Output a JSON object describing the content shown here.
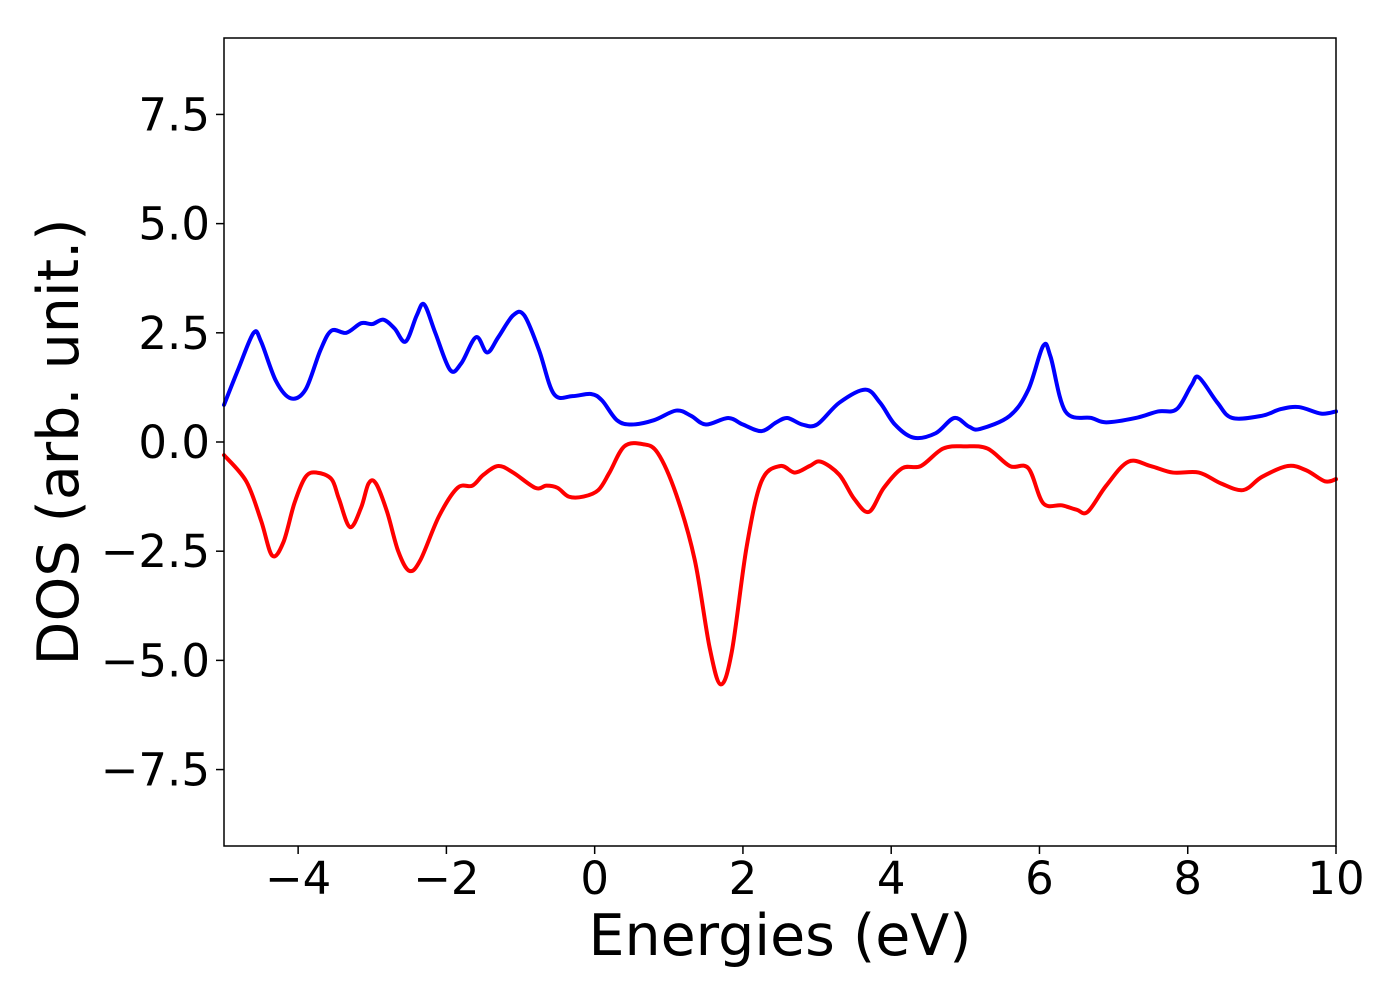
{
  "chart_data": {
    "type": "line",
    "title": "",
    "xlabel": "Energies (eV)",
    "ylabel": "DOS (arb. unit.)",
    "xlim": [
      -5,
      10
    ],
    "ylim": [
      -9.25,
      9.25
    ],
    "grid": false,
    "legend": "none",
    "x_ticks": [
      -4,
      -2,
      0,
      2,
      4,
      6,
      8,
      10
    ],
    "x_tick_labels": [
      "−4",
      "−2",
      "0",
      "2",
      "4",
      "6",
      "8",
      "10"
    ],
    "y_ticks": [
      -7.5,
      -5.0,
      -2.5,
      0.0,
      2.5,
      5.0,
      7.5
    ],
    "y_tick_labels": [
      "−7.5",
      "−5.0",
      "−2.5",
      "0.0",
      "2.5",
      "5.0",
      "7.5"
    ],
    "series": [
      {
        "color": "#0000ff",
        "points": [
          [
            -5.0,
            0.85
          ],
          [
            -4.8,
            1.7
          ],
          [
            -4.6,
            2.5
          ],
          [
            -4.5,
            2.3
          ],
          [
            -4.3,
            1.4
          ],
          [
            -4.1,
            1.0
          ],
          [
            -3.9,
            1.2
          ],
          [
            -3.7,
            2.1
          ],
          [
            -3.55,
            2.55
          ],
          [
            -3.35,
            2.5
          ],
          [
            -3.15,
            2.72
          ],
          [
            -3.0,
            2.7
          ],
          [
            -2.85,
            2.8
          ],
          [
            -2.7,
            2.6
          ],
          [
            -2.55,
            2.3
          ],
          [
            -2.4,
            2.9
          ],
          [
            -2.3,
            3.15
          ],
          [
            -2.15,
            2.5
          ],
          [
            -1.95,
            1.65
          ],
          [
            -1.8,
            1.8
          ],
          [
            -1.6,
            2.4
          ],
          [
            -1.45,
            2.05
          ],
          [
            -1.3,
            2.4
          ],
          [
            -1.1,
            2.9
          ],
          [
            -0.95,
            2.9
          ],
          [
            -0.75,
            2.1
          ],
          [
            -0.55,
            1.1
          ],
          [
            -0.3,
            1.05
          ],
          [
            -0.05,
            1.1
          ],
          [
            0.1,
            0.95
          ],
          [
            0.3,
            0.5
          ],
          [
            0.5,
            0.4
          ],
          [
            0.8,
            0.5
          ],
          [
            1.1,
            0.72
          ],
          [
            1.3,
            0.6
          ],
          [
            1.5,
            0.4
          ],
          [
            1.8,
            0.55
          ],
          [
            2.0,
            0.4
          ],
          [
            2.25,
            0.25
          ],
          [
            2.45,
            0.45
          ],
          [
            2.6,
            0.55
          ],
          [
            2.8,
            0.4
          ],
          [
            3.0,
            0.4
          ],
          [
            3.3,
            0.9
          ],
          [
            3.65,
            1.2
          ],
          [
            3.85,
            0.9
          ],
          [
            4.05,
            0.4
          ],
          [
            4.3,
            0.1
          ],
          [
            4.6,
            0.2
          ],
          [
            4.85,
            0.55
          ],
          [
            5.05,
            0.35
          ],
          [
            5.2,
            0.3
          ],
          [
            5.6,
            0.6
          ],
          [
            5.85,
            1.2
          ],
          [
            6.05,
            2.2
          ],
          [
            6.15,
            1.95
          ],
          [
            6.35,
            0.7
          ],
          [
            6.7,
            0.55
          ],
          [
            6.9,
            0.45
          ],
          [
            7.3,
            0.55
          ],
          [
            7.6,
            0.7
          ],
          [
            7.85,
            0.75
          ],
          [
            8.05,
            1.3
          ],
          [
            8.15,
            1.48
          ],
          [
            8.4,
            0.9
          ],
          [
            8.6,
            0.55
          ],
          [
            9.0,
            0.6
          ],
          [
            9.25,
            0.75
          ],
          [
            9.5,
            0.8
          ],
          [
            9.8,
            0.65
          ],
          [
            10.0,
            0.7
          ]
        ]
      },
      {
        "color": "#ff0000",
        "points": [
          [
            -5.0,
            -0.3
          ],
          [
            -4.7,
            -0.9
          ],
          [
            -4.5,
            -1.8
          ],
          [
            -4.35,
            -2.6
          ],
          [
            -4.2,
            -2.3
          ],
          [
            -4.05,
            -1.4
          ],
          [
            -3.9,
            -0.8
          ],
          [
            -3.75,
            -0.7
          ],
          [
            -3.55,
            -0.85
          ],
          [
            -3.45,
            -1.3
          ],
          [
            -3.3,
            -1.95
          ],
          [
            -3.15,
            -1.5
          ],
          [
            -3.05,
            -0.95
          ],
          [
            -2.95,
            -0.95
          ],
          [
            -2.8,
            -1.6
          ],
          [
            -2.65,
            -2.5
          ],
          [
            -2.5,
            -2.95
          ],
          [
            -2.35,
            -2.7
          ],
          [
            -2.1,
            -1.7
          ],
          [
            -1.85,
            -1.05
          ],
          [
            -1.65,
            -1.0
          ],
          [
            -1.5,
            -0.75
          ],
          [
            -1.3,
            -0.55
          ],
          [
            -1.1,
            -0.7
          ],
          [
            -0.8,
            -1.05
          ],
          [
            -0.65,
            -1.0
          ],
          [
            -0.5,
            -1.05
          ],
          [
            -0.35,
            -1.25
          ],
          [
            -0.15,
            -1.25
          ],
          [
            0.05,
            -1.1
          ],
          [
            0.2,
            -0.7
          ],
          [
            0.4,
            -0.1
          ],
          [
            0.65,
            -0.05
          ],
          [
            0.85,
            -0.25
          ],
          [
            1.1,
            -1.2
          ],
          [
            1.35,
            -2.7
          ],
          [
            1.55,
            -4.7
          ],
          [
            1.7,
            -5.55
          ],
          [
            1.85,
            -4.8
          ],
          [
            2.05,
            -2.4
          ],
          [
            2.25,
            -0.9
          ],
          [
            2.5,
            -0.55
          ],
          [
            2.7,
            -0.7
          ],
          [
            2.9,
            -0.55
          ],
          [
            3.05,
            -0.45
          ],
          [
            3.3,
            -0.75
          ],
          [
            3.5,
            -1.3
          ],
          [
            3.7,
            -1.6
          ],
          [
            3.9,
            -1.05
          ],
          [
            4.15,
            -0.6
          ],
          [
            4.4,
            -0.55
          ],
          [
            4.7,
            -0.15
          ],
          [
            5.0,
            -0.1
          ],
          [
            5.3,
            -0.15
          ],
          [
            5.6,
            -0.55
          ],
          [
            5.85,
            -0.6
          ],
          [
            6.05,
            -1.4
          ],
          [
            6.3,
            -1.45
          ],
          [
            6.5,
            -1.55
          ],
          [
            6.65,
            -1.6
          ],
          [
            6.9,
            -1.0
          ],
          [
            7.2,
            -0.45
          ],
          [
            7.5,
            -0.55
          ],
          [
            7.8,
            -0.7
          ],
          [
            8.15,
            -0.7
          ],
          [
            8.45,
            -0.95
          ],
          [
            8.75,
            -1.1
          ],
          [
            9.0,
            -0.8
          ],
          [
            9.35,
            -0.55
          ],
          [
            9.6,
            -0.65
          ],
          [
            9.85,
            -0.9
          ],
          [
            10.0,
            -0.85
          ]
        ]
      }
    ]
  }
}
